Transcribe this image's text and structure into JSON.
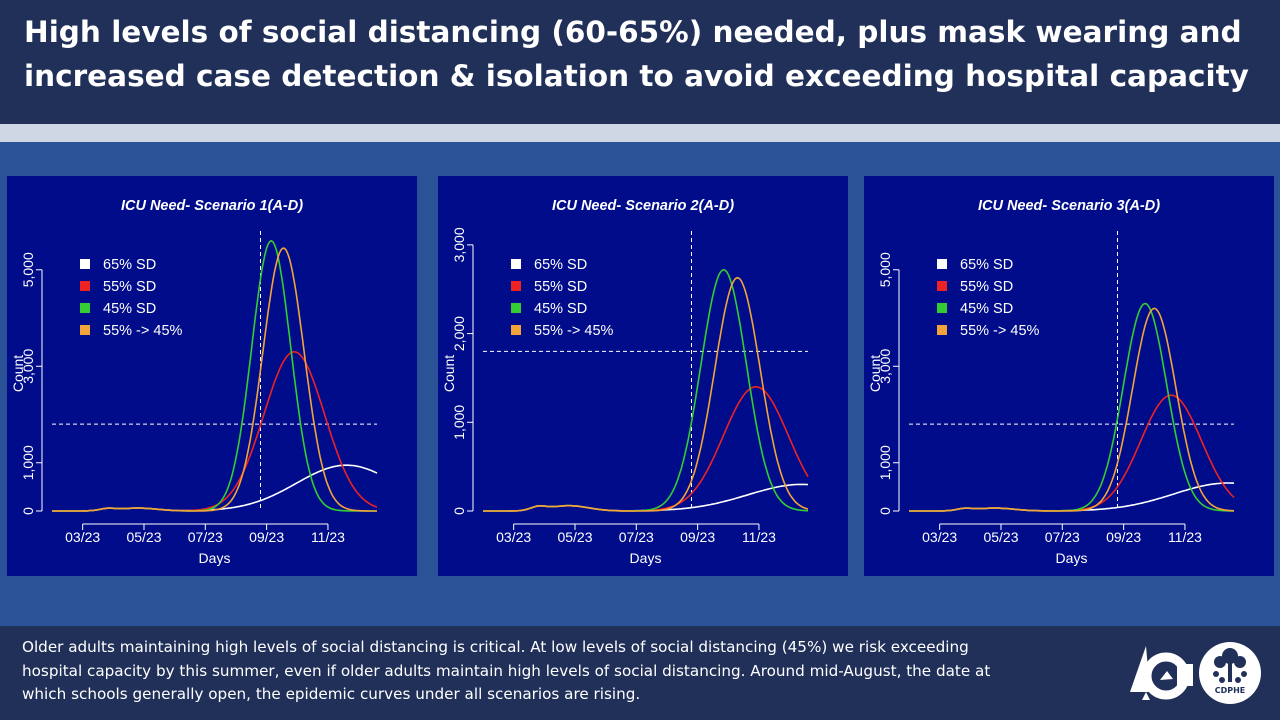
{
  "header": {
    "title": "High levels of social distancing (60-65%) needed, plus mask wearing and increased case detection & isolation to avoid exceeding hospital capacity"
  },
  "footer": {
    "text": "Older adults maintaining high levels of social distancing is critical. At low levels of social distancing (45%) we risk exceeding hospital capacity by this summer, even if older adults maintain high levels of social distancing. Around mid-August, the date at which schools generally open, the epidemic curves under all scenarios are rising."
  },
  "logos": {
    "colorado": "colorado-logo",
    "cdphe_label": "CDPHE"
  },
  "colors": {
    "65% SD": "#ffffff",
    "55% SD": "#ee2222",
    "45% SD": "#33cc33",
    "55% -> 45%": "#f2a33a"
  },
  "chart_data": [
    {
      "type": "line",
      "title": "ICU Need- Scenario 1(A-D)",
      "xlabel": "Days",
      "ylabel": "Count",
      "x_ticks": [
        "03/23",
        "05/23",
        "07/23",
        "09/23",
        "11/23"
      ],
      "x_tick_months": [
        3,
        5,
        7,
        9,
        11
      ],
      "xlim": [
        2.0,
        12.6
      ],
      "ylim": [
        0,
        5700
      ],
      "y_ticks": [
        0,
        1000,
        3000,
        5000
      ],
      "y_tick_labels": [
        "0",
        "1,000",
        "3,000",
        "5,000"
      ],
      "capacity": 1800,
      "school_open_month": 8.8,
      "legend": [
        "65% SD",
        "55% SD",
        "45% SD",
        "55% -> 45%"
      ],
      "series": [
        {
          "name": "65% SD",
          "peak": 950,
          "peak_month": 11.6,
          "width": 2.3
        },
        {
          "name": "55% SD",
          "peak": 3300,
          "peak_month": 9.9,
          "width": 1.4
        },
        {
          "name": "45% SD",
          "peak": 5600,
          "peak_month": 9.15,
          "width": 0.9
        },
        {
          "name": "55% -> 45%",
          "peak": 5450,
          "peak_month": 9.55,
          "width": 0.95
        }
      ]
    },
    {
      "type": "line",
      "title": "ICU Need- Scenario 2(A-D)",
      "xlabel": "Days",
      "ylabel": "Count",
      "x_ticks": [
        "03/23",
        "05/23",
        "07/23",
        "09/23",
        "11/23"
      ],
      "x_tick_months": [
        3,
        5,
        7,
        9,
        11
      ],
      "xlim": [
        2.0,
        12.6
      ],
      "ylim": [
        0,
        3100
      ],
      "y_ticks": [
        0,
        1000,
        2000,
        3000
      ],
      "y_tick_labels": [
        "0",
        "1,000",
        "2,000",
        "3,000"
      ],
      "capacity": 1800,
      "school_open_month": 8.8,
      "legend": [
        "65% SD",
        "55% SD",
        "45% SD",
        "55% -> 45%"
      ],
      "series": [
        {
          "name": "65% SD",
          "peak": 300,
          "peak_month": 12.4,
          "width": 2.5
        },
        {
          "name": "55% SD",
          "peak": 1400,
          "peak_month": 10.9,
          "width": 1.5
        },
        {
          "name": "45% SD",
          "peak": 2720,
          "peak_month": 9.85,
          "width": 1.05
        },
        {
          "name": "55% -> 45%",
          "peak": 2630,
          "peak_month": 10.3,
          "width": 1.05
        }
      ]
    },
    {
      "type": "line",
      "title": "ICU Need- Scenario 3(A-D)",
      "xlabel": "Days",
      "ylabel": "Count",
      "x_ticks": [
        "03/23",
        "05/23",
        "07/23",
        "09/23",
        "11/23"
      ],
      "x_tick_months": [
        3,
        5,
        7,
        9,
        11
      ],
      "xlim": [
        2.0,
        12.6
      ],
      "ylim": [
        0,
        5700
      ],
      "y_ticks": [
        0,
        1000,
        3000,
        5000
      ],
      "y_tick_labels": [
        "0",
        "1,000",
        "3,000",
        "5,000"
      ],
      "capacity": 1800,
      "school_open_month": 8.8,
      "legend": [
        "65% SD",
        "55% SD",
        "45% SD",
        "55% -> 45%"
      ],
      "series": [
        {
          "name": "65% SD",
          "peak": 580,
          "peak_month": 12.4,
          "width": 2.5
        },
        {
          "name": "55% SD",
          "peak": 2400,
          "peak_month": 10.55,
          "width": 1.4
        },
        {
          "name": "45% SD",
          "peak": 4300,
          "peak_month": 9.7,
          "width": 1.0
        },
        {
          "name": "55% -> 45%",
          "peak": 4200,
          "peak_month": 10.0,
          "width": 1.0
        }
      ]
    }
  ]
}
